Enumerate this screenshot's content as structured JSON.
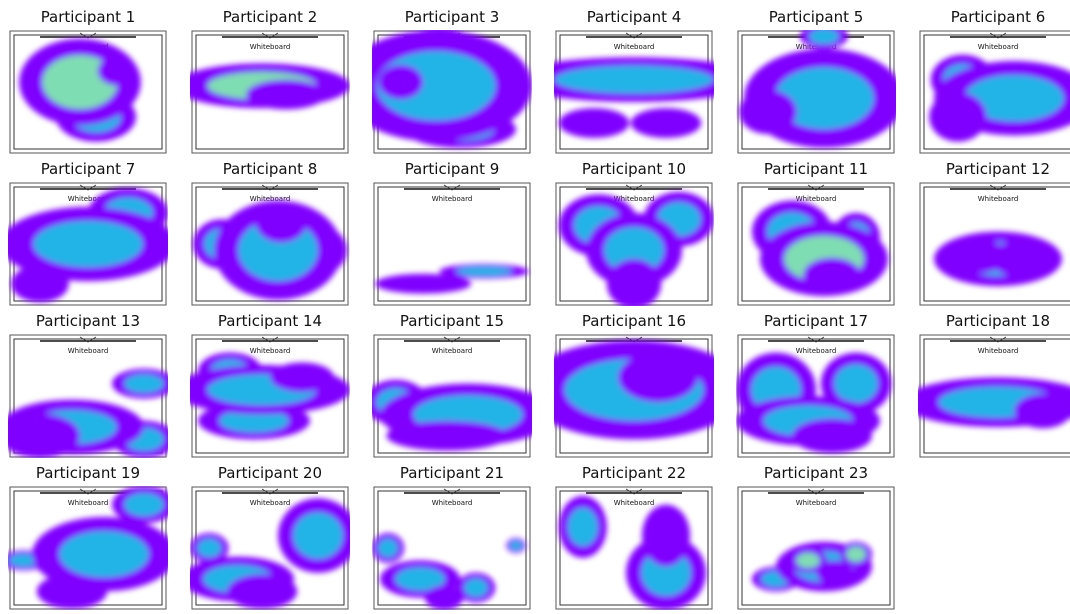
{
  "chart_data": {
    "type": "heatmap",
    "room_label": "Whiteboard",
    "colormap": "rainbow",
    "colors": [
      "#7f00ff",
      "#4a6cf7",
      "#19c6e4",
      "#7ff5ab",
      "#ffd15c",
      "#ff2a0e"
    ],
    "panels": [
      {
        "title": "Participant 1",
        "blobs": [
          [
            0.45,
            0.42,
            0.38,
            0.35,
            0.85
          ],
          [
            0.68,
            0.33,
            0.12,
            0.12,
            1.0
          ],
          [
            0.55,
            0.7,
            0.25,
            0.2,
            0.55
          ]
        ]
      },
      {
        "title": "Participant 2",
        "blobs": [
          [
            0.45,
            0.45,
            0.55,
            0.18,
            0.75
          ],
          [
            0.6,
            0.52,
            0.25,
            0.12,
            1.0
          ]
        ]
      },
      {
        "title": "Participant 3",
        "blobs": [
          [
            0.4,
            0.45,
            0.6,
            0.45,
            0.65
          ],
          [
            0.18,
            0.42,
            0.14,
            0.14,
            1.0
          ],
          [
            0.55,
            0.8,
            0.35,
            0.15,
            0.55
          ],
          [
            0.42,
            0.1,
            0.2,
            0.12,
            0.45
          ]
        ]
      },
      {
        "title": "Participant 4",
        "blobs": [
          [
            0.5,
            0.4,
            0.8,
            0.18,
            0.55
          ],
          [
            0.25,
            0.75,
            0.22,
            0.12,
            1.0
          ],
          [
            0.7,
            0.75,
            0.22,
            0.12,
            1.0
          ]
        ]
      },
      {
        "title": "Participant 5",
        "blobs": [
          [
            0.2,
            0.66,
            0.18,
            0.18,
            1.0
          ],
          [
            0.55,
            0.55,
            0.5,
            0.4,
            0.6
          ],
          [
            0.55,
            0.05,
            0.15,
            0.1,
            0.55
          ]
        ]
      },
      {
        "title": "Participant 6",
        "blobs": [
          [
            0.25,
            0.7,
            0.18,
            0.2,
            1.0
          ],
          [
            0.28,
            0.4,
            0.2,
            0.2,
            0.55
          ],
          [
            0.6,
            0.55,
            0.5,
            0.3,
            0.55
          ]
        ]
      },
      {
        "title": "Participant 7",
        "blobs": [
          [
            0.2,
            0.82,
            0.18,
            0.15,
            1.0
          ],
          [
            0.5,
            0.5,
            0.55,
            0.3,
            0.6
          ],
          [
            0.75,
            0.25,
            0.25,
            0.2,
            0.45
          ]
        ]
      },
      {
        "title": "Participant 8",
        "blobs": [
          [
            0.57,
            0.33,
            0.16,
            0.16,
            1.0
          ],
          [
            0.55,
            0.55,
            0.4,
            0.4,
            0.55
          ],
          [
            0.2,
            0.5,
            0.18,
            0.2,
            0.4
          ],
          [
            0.8,
            0.55,
            0.18,
            0.2,
            0.4
          ]
        ]
      },
      {
        "title": "Participant 9",
        "blobs": [
          [
            0.32,
            0.82,
            0.3,
            0.08,
            1.0
          ],
          [
            0.7,
            0.72,
            0.28,
            0.06,
            0.5
          ]
        ]
      },
      {
        "title": "Participant 10",
        "blobs": [
          [
            0.5,
            0.82,
            0.17,
            0.2,
            1.0
          ],
          [
            0.28,
            0.35,
            0.25,
            0.25,
            0.45
          ],
          [
            0.78,
            0.3,
            0.22,
            0.22,
            0.45
          ],
          [
            0.5,
            0.55,
            0.3,
            0.3,
            0.5
          ]
        ]
      },
      {
        "title": "Participant 11",
        "blobs": [
          [
            0.55,
            0.62,
            0.4,
            0.3,
            0.75
          ],
          [
            0.6,
            0.75,
            0.18,
            0.14,
            1.0
          ],
          [
            0.75,
            0.45,
            0.15,
            0.2,
            0.7
          ],
          [
            0.35,
            0.4,
            0.25,
            0.25,
            0.45
          ]
        ]
      },
      {
        "title": "Participant 12",
        "blobs": [
          [
            0.35,
            0.6,
            0.22,
            0.14,
            1.0
          ],
          [
            0.65,
            0.62,
            0.2,
            0.15,
            1.0
          ],
          [
            0.5,
            0.62,
            0.4,
            0.22,
            0.55
          ]
        ]
      },
      {
        "title": "Participant 13",
        "blobs": [
          [
            0.2,
            0.82,
            0.25,
            0.18,
            1.0
          ],
          [
            0.4,
            0.75,
            0.45,
            0.22,
            0.6
          ],
          [
            0.85,
            0.4,
            0.2,
            0.12,
            0.45
          ],
          [
            0.85,
            0.85,
            0.2,
            0.15,
            0.4
          ]
        ]
      },
      {
        "title": "Participant 14",
        "blobs": [
          [
            0.7,
            0.35,
            0.2,
            0.12,
            1.0
          ],
          [
            0.45,
            0.45,
            0.55,
            0.2,
            0.6
          ],
          [
            0.25,
            0.3,
            0.2,
            0.15,
            0.4
          ],
          [
            0.4,
            0.7,
            0.35,
            0.15,
            0.4
          ]
        ]
      },
      {
        "title": "Participant 15",
        "blobs": [
          [
            0.47,
            0.82,
            0.38,
            0.12,
            1.0
          ],
          [
            0.15,
            0.55,
            0.2,
            0.18,
            0.5
          ],
          [
            0.6,
            0.65,
            0.55,
            0.25,
            0.55
          ]
        ]
      },
      {
        "title": "Participant 16",
        "blobs": [
          [
            0.65,
            0.35,
            0.25,
            0.2,
            1.0
          ],
          [
            0.5,
            0.45,
            0.7,
            0.4,
            0.65
          ]
        ]
      },
      {
        "title": "Participant 17",
        "blobs": [
          [
            0.6,
            0.82,
            0.25,
            0.14,
            1.0
          ],
          [
            0.25,
            0.45,
            0.25,
            0.3,
            0.55
          ],
          [
            0.75,
            0.4,
            0.22,
            0.25,
            0.55
          ],
          [
            0.45,
            0.7,
            0.45,
            0.2,
            0.6
          ]
        ]
      },
      {
        "title": "Participant 18",
        "blobs": [
          [
            0.78,
            0.62,
            0.18,
            0.14,
            1.0
          ],
          [
            0.5,
            0.55,
            0.6,
            0.2,
            0.6
          ]
        ]
      },
      {
        "title": "Participant 19",
        "blobs": [
          [
            0.4,
            0.85,
            0.22,
            0.14,
            1.0
          ],
          [
            0.6,
            0.55,
            0.45,
            0.3,
            0.55
          ],
          [
            0.85,
            0.15,
            0.2,
            0.15,
            0.45
          ],
          [
            0.1,
            0.6,
            0.15,
            0.08,
            0.4
          ]
        ]
      },
      {
        "title": "Participant 20",
        "blobs": [
          [
            0.45,
            0.85,
            0.22,
            0.14,
            1.0
          ],
          [
            0.3,
            0.75,
            0.35,
            0.18,
            0.55
          ],
          [
            0.8,
            0.4,
            0.25,
            0.3,
            0.5
          ],
          [
            0.12,
            0.5,
            0.12,
            0.12,
            0.4
          ]
        ]
      },
      {
        "title": "Participant 21",
        "blobs": [
          [
            0.45,
            0.9,
            0.12,
            0.1,
            1.0
          ],
          [
            0.3,
            0.75,
            0.25,
            0.15,
            0.5
          ],
          [
            0.1,
            0.5,
            0.1,
            0.12,
            0.45
          ],
          [
            0.9,
            0.48,
            0.06,
            0.06,
            0.4
          ],
          [
            0.65,
            0.82,
            0.12,
            0.12,
            0.5
          ]
        ]
      },
      {
        "title": "Participant 22",
        "blobs": [
          [
            0.7,
            0.4,
            0.15,
            0.25,
            1.0
          ],
          [
            0.7,
            0.7,
            0.25,
            0.3,
            0.55
          ],
          [
            0.18,
            0.33,
            0.15,
            0.25,
            0.45
          ]
        ]
      },
      {
        "title": "Participant 23",
        "blobs": [
          [
            0.62,
            0.7,
            0.12,
            0.1,
            1.0
          ],
          [
            0.45,
            0.6,
            0.12,
            0.1,
            0.9
          ],
          [
            0.75,
            0.55,
            0.1,
            0.1,
            0.85
          ],
          [
            0.55,
            0.65,
            0.3,
            0.2,
            0.55
          ],
          [
            0.25,
            0.75,
            0.15,
            0.1,
            0.45
          ]
        ]
      }
    ]
  }
}
